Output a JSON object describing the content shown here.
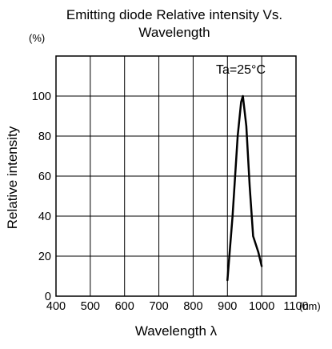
{
  "chart_data": {
    "type": "line",
    "title_line1": "Emitting diode Relative intensity Vs.",
    "title_line2": "Wavelength",
    "xlabel": "Wavelength λ",
    "ylabel": "Relative intensity",
    "x_unit": "(nm)",
    "y_unit": "(%)",
    "annotation": "Ta=25°C",
    "xlim": [
      400,
      1100
    ],
    "ylim": [
      0,
      120
    ],
    "x_ticks": [
      400,
      500,
      600,
      700,
      800,
      900,
      1000,
      1100
    ],
    "y_ticks": [
      0,
      20,
      40,
      60,
      80,
      100
    ],
    "grid": true,
    "series": [
      {
        "x": [
          900,
          915,
          930,
          940,
          945,
          955,
          965,
          975,
          990,
          1000
        ],
        "y": [
          8,
          40,
          80,
          97,
          100,
          85,
          55,
          30,
          22,
          15
        ]
      }
    ],
    "colors": {
      "line": "#000000",
      "grid": "#000000"
    }
  }
}
